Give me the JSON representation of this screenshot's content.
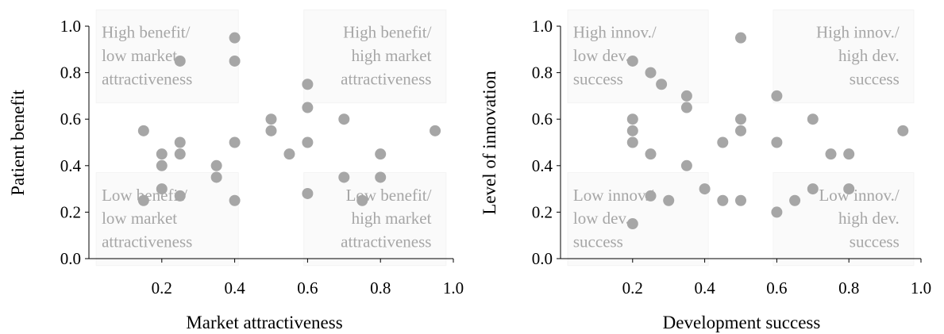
{
  "chart_data": [
    {
      "type": "scatter",
      "xlabel": "Market attractiveness",
      "ylabel": "Patient benefit",
      "xlim": [
        0,
        1
      ],
      "ylim": [
        0,
        1
      ],
      "xticks": [
        "0.2",
        "0.4",
        "0.6",
        "0.8",
        "1.0"
      ],
      "yticks": [
        "0.0",
        "0.2",
        "0.4",
        "0.6",
        "0.8",
        "1.0"
      ],
      "grid": false,
      "marker_color": "#a6a6a6",
      "quadrants": [
        {
          "position": "top-left",
          "lines": [
            "High benefit/",
            "low market",
            "attractiveness"
          ]
        },
        {
          "position": "top-right",
          "lines": [
            "High benefit/",
            "high market",
            "attractiveness"
          ]
        },
        {
          "position": "bottom-left",
          "lines": [
            "Low benefit/",
            "low market",
            "attractiveness"
          ]
        },
        {
          "position": "bottom-right",
          "lines": [
            "Low benefit/",
            "high market",
            "attractiveness"
          ]
        }
      ],
      "points": [
        {
          "x": 0.15,
          "y": 0.55
        },
        {
          "x": 0.15,
          "y": 0.25
        },
        {
          "x": 0.2,
          "y": 0.45
        },
        {
          "x": 0.2,
          "y": 0.4
        },
        {
          "x": 0.2,
          "y": 0.3
        },
        {
          "x": 0.25,
          "y": 0.85
        },
        {
          "x": 0.25,
          "y": 0.5
        },
        {
          "x": 0.25,
          "y": 0.45
        },
        {
          "x": 0.25,
          "y": 0.27
        },
        {
          "x": 0.35,
          "y": 0.4
        },
        {
          "x": 0.35,
          "y": 0.35
        },
        {
          "x": 0.4,
          "y": 0.95
        },
        {
          "x": 0.4,
          "y": 0.85
        },
        {
          "x": 0.4,
          "y": 0.5
        },
        {
          "x": 0.4,
          "y": 0.25
        },
        {
          "x": 0.5,
          "y": 0.6
        },
        {
          "x": 0.5,
          "y": 0.55
        },
        {
          "x": 0.55,
          "y": 0.45
        },
        {
          "x": 0.6,
          "y": 0.75
        },
        {
          "x": 0.6,
          "y": 0.65
        },
        {
          "x": 0.6,
          "y": 0.5
        },
        {
          "x": 0.6,
          "y": 0.28
        },
        {
          "x": 0.7,
          "y": 0.6
        },
        {
          "x": 0.7,
          "y": 0.35
        },
        {
          "x": 0.75,
          "y": 0.25
        },
        {
          "x": 0.8,
          "y": 0.45
        },
        {
          "x": 0.8,
          "y": 0.35
        },
        {
          "x": 0.95,
          "y": 0.55
        }
      ]
    },
    {
      "type": "scatter",
      "xlabel": "Development success",
      "ylabel": "Level of innovation",
      "xlim": [
        0,
        1
      ],
      "ylim": [
        0,
        1
      ],
      "xticks": [
        "0.2",
        "0.4",
        "0.6",
        "0.8",
        "1.0"
      ],
      "yticks": [
        "0.0",
        "0.2",
        "0.4",
        "0.6",
        "0.8",
        "1.0"
      ],
      "grid": false,
      "marker_color": "#a6a6a6",
      "quadrants": [
        {
          "position": "top-left",
          "lines": [
            "High innov./",
            "low dev.",
            "success"
          ]
        },
        {
          "position": "top-right",
          "lines": [
            "High innov./",
            "high dev.",
            "success"
          ]
        },
        {
          "position": "bottom-left",
          "lines": [
            "Low innov./",
            "low dev.",
            "success"
          ]
        },
        {
          "position": "bottom-right",
          "lines": [
            "Low innov./",
            "high dev.",
            "success"
          ]
        }
      ],
      "points": [
        {
          "x": 0.2,
          "y": 0.85
        },
        {
          "x": 0.2,
          "y": 0.6
        },
        {
          "x": 0.2,
          "y": 0.55
        },
        {
          "x": 0.2,
          "y": 0.5
        },
        {
          "x": 0.2,
          "y": 0.15
        },
        {
          "x": 0.25,
          "y": 0.8
        },
        {
          "x": 0.25,
          "y": 0.45
        },
        {
          "x": 0.25,
          "y": 0.27
        },
        {
          "x": 0.28,
          "y": 0.75
        },
        {
          "x": 0.3,
          "y": 0.25
        },
        {
          "x": 0.35,
          "y": 0.7
        },
        {
          "x": 0.35,
          "y": 0.65
        },
        {
          "x": 0.35,
          "y": 0.4
        },
        {
          "x": 0.4,
          "y": 0.3
        },
        {
          "x": 0.45,
          "y": 0.5
        },
        {
          "x": 0.45,
          "y": 0.25
        },
        {
          "x": 0.5,
          "y": 0.95
        },
        {
          "x": 0.5,
          "y": 0.6
        },
        {
          "x": 0.5,
          "y": 0.55
        },
        {
          "x": 0.5,
          "y": 0.25
        },
        {
          "x": 0.6,
          "y": 0.7
        },
        {
          "x": 0.6,
          "y": 0.5
        },
        {
          "x": 0.6,
          "y": 0.2
        },
        {
          "x": 0.65,
          "y": 0.25
        },
        {
          "x": 0.7,
          "y": 0.6
        },
        {
          "x": 0.7,
          "y": 0.3
        },
        {
          "x": 0.75,
          "y": 0.45
        },
        {
          "x": 0.8,
          "y": 0.45
        },
        {
          "x": 0.8,
          "y": 0.3
        },
        {
          "x": 0.95,
          "y": 0.55
        }
      ]
    }
  ]
}
